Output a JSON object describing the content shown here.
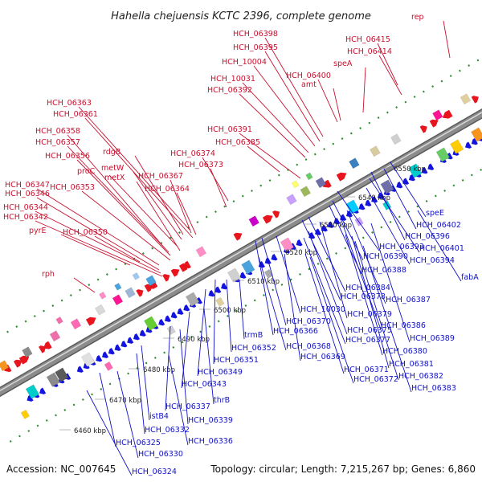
{
  "title": "Hahella chejuensis KCTC 2396, complete genome",
  "footer": {
    "accession": "Accession: NC_007645",
    "topology": "Topology: circular; Length: 7,215,267 bp; Genes: 6,860"
  },
  "colors": {
    "top_label": "#c8102e",
    "bottom_label": "#1010c8",
    "forward_strand": "#e8141e",
    "reverse_strand": "#1414e0",
    "backbone": "#8c8c8c",
    "dotted_track": "#2d8a2d"
  },
  "scale_labels": [
    "6460 kbp",
    "6470 kbp",
    "6480 kbp",
    "6490 kbp",
    "6500 kbp",
    "6510 kbp",
    "6520 kbp",
    "6530 kbp",
    "6540 kbp",
    "6550 kbp"
  ],
  "top_genes": [
    "rep",
    "HCH_06415",
    "HCH_06414",
    "speA",
    "HCH_06398",
    "HCH_06395",
    "HCH_10004",
    "HCH_06400",
    "amt",
    "HCH_10031",
    "HCH_06392",
    "HCH_06363",
    "HCH_06361",
    "HCH_06391",
    "HCH_06385",
    "HCH_06358",
    "rdgB",
    "HCH_06357",
    "HCH_06374",
    "HCH_06373",
    "metW",
    "HCH_06356",
    "proC",
    "metX",
    "HCH_06367",
    "HCH_06353",
    "HCH_06364",
    "HCH_06347",
    "HCH_06346",
    "HCH_06344",
    "HCH_06342",
    "pyrE",
    "HCH_06350",
    "rph"
  ],
  "bottom_genes": [
    "speE",
    "HCH_06402",
    "HCH_06396",
    "HCH_06401",
    "HCH_06393",
    "HCH_06394",
    "HCH_06390",
    "HCH_06388",
    "fabA",
    "HCH_06384",
    "HCH_06378",
    "HCH_06387",
    "HCH_10030",
    "HCH_06379",
    "HCH_06370",
    "HCH_06386",
    "HCH_06366",
    "HCH_06375",
    "HCH_06368",
    "HCH_06377",
    "HCH_06389",
    "trmB",
    "HCH_06380",
    "HCH_06352",
    "HCH_06351",
    "HCH_06369",
    "HCH_06381",
    "HCH_06349",
    "HCH_06371",
    "HCH_06382",
    "HCH_06372",
    "HCH_06383",
    "HCH_06343",
    "thrB",
    "HCH_06337",
    "HCH_06339",
    "istB4",
    "HCH_06332",
    "HCH_06336",
    "HCH_06325",
    "HCH_06330",
    "HCH_06324"
  ]
}
